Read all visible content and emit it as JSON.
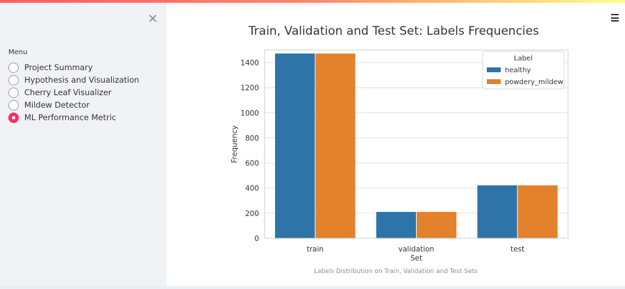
{
  "sidebar": {
    "close_icon": "close-icon",
    "menu_label": "Menu",
    "items": [
      {
        "label": "Project Summary",
        "selected": false
      },
      {
        "label": "Hypothesis and Visualization",
        "selected": false
      },
      {
        "label": "Cherry Leaf Visualizer",
        "selected": false
      },
      {
        "label": "Mildew Detector",
        "selected": false
      },
      {
        "label": "ML Performance Metric",
        "selected": true
      }
    ]
  },
  "header": {
    "menu_icon": "hamburger-menu-icon"
  },
  "colors": {
    "accent": "#ff2b67",
    "healthy": "#2e74a8",
    "powdery_mildew": "#e2822c",
    "sidebar_bg": "#f0f2f6"
  },
  "chart_data": {
    "type": "bar",
    "title": "Train, Validation and Test Set: Labels Frequencies",
    "xlabel": "Set",
    "ylabel": "Frequency",
    "categories": [
      "train",
      "validation",
      "test"
    ],
    "series": [
      {
        "name": "healthy",
        "color": "#2e74a8",
        "values": [
          1472,
          210,
          422
        ]
      },
      {
        "name": "powdery_mildew",
        "color": "#e2822c",
        "values": [
          1472,
          210,
          422
        ]
      }
    ],
    "ylim": [
      0,
      1500
    ],
    "yticks": [
      0,
      200,
      400,
      600,
      800,
      1000,
      1200,
      1400
    ],
    "grid": true,
    "legend_title": "Label",
    "legend_position": "top-right"
  },
  "caption": "Labels Distribution on Train, Validation and Test Sets"
}
